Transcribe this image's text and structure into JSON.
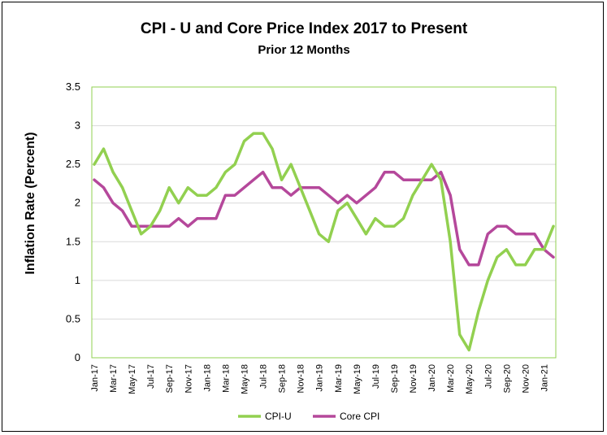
{
  "chart_data": {
    "type": "line",
    "title": "CPI - U and Core Price Index 2017 to Present",
    "subtitle": "Prior 12 Months",
    "ylabel": "Inflation Rate (Percent)",
    "xlabel": "",
    "ylim": [
      0,
      3.5
    ],
    "yticks": [
      "0",
      "0.5",
      "1",
      "1.5",
      "2",
      "2.5",
      "3",
      "3.5"
    ],
    "grid": true,
    "legend_position": "bottom",
    "x": [
      "Jan-17",
      "Feb-17",
      "Mar-17",
      "Apr-17",
      "May-17",
      "Jun-17",
      "Jul-17",
      "Aug-17",
      "Sep-17",
      "Oct-17",
      "Nov-17",
      "Dec-17",
      "Jan-18",
      "Feb-18",
      "Mar-18",
      "Apr-18",
      "May-18",
      "Jun-18",
      "Jul-18",
      "Aug-18",
      "Sep-18",
      "Oct-18",
      "Nov-18",
      "Dec-18",
      "Jan-19",
      "Feb-19",
      "Mar-19",
      "Apr-19",
      "May-19",
      "Jun-19",
      "Jul-19",
      "Aug-19",
      "Sep-19",
      "Oct-19",
      "Nov-19",
      "Dec-19",
      "Jan-20",
      "Feb-20",
      "Mar-20",
      "Apr-20",
      "May-20",
      "Jun-20",
      "Jul-20",
      "Aug-20",
      "Sep-20",
      "Oct-20",
      "Nov-20",
      "Dec-20",
      "Jan-21",
      "Feb-21"
    ],
    "xtick_labels": [
      "Jan-17",
      "Mar-17",
      "May-17",
      "Jul-17",
      "Sep-17",
      "Nov-17",
      "Jan-18",
      "Mar-18",
      "May-18",
      "Jul-18",
      "Sep-18",
      "Nov-18",
      "Jan-19",
      "Mar-19",
      "May-19",
      "Jul-19",
      "Sep-19",
      "Nov-19",
      "Jan-20",
      "Mar-20",
      "May-20",
      "Jul-20",
      "Sep-20",
      "Nov-20",
      "Jan-21"
    ],
    "series": [
      {
        "name": "CPI-U",
        "color": "#92d050",
        "values": [
          2.5,
          2.7,
          2.4,
          2.2,
          1.9,
          1.6,
          1.7,
          1.9,
          2.2,
          2.0,
          2.2,
          2.1,
          2.1,
          2.2,
          2.4,
          2.5,
          2.8,
          2.9,
          2.9,
          2.7,
          2.3,
          2.5,
          2.2,
          1.9,
          1.6,
          1.5,
          1.9,
          2.0,
          1.8,
          1.6,
          1.8,
          1.7,
          1.7,
          1.8,
          2.1,
          2.3,
          2.5,
          2.3,
          1.5,
          0.3,
          0.1,
          0.6,
          1.0,
          1.3,
          1.4,
          1.2,
          1.2,
          1.4,
          1.4,
          1.7
        ]
      },
      {
        "name": "Core CPI",
        "color": "#b5489b",
        "values": [
          2.3,
          2.2,
          2.0,
          1.9,
          1.7,
          1.7,
          1.7,
          1.7,
          1.7,
          1.8,
          1.7,
          1.8,
          1.8,
          1.8,
          2.1,
          2.1,
          2.2,
          2.3,
          2.4,
          2.2,
          2.2,
          2.1,
          2.2,
          2.2,
          2.2,
          2.1,
          2.0,
          2.1,
          2.0,
          2.1,
          2.2,
          2.4,
          2.4,
          2.3,
          2.3,
          2.3,
          2.3,
          2.4,
          2.1,
          1.4,
          1.2,
          1.2,
          1.6,
          1.7,
          1.7,
          1.6,
          1.6,
          1.6,
          1.4,
          1.3
        ]
      }
    ]
  }
}
